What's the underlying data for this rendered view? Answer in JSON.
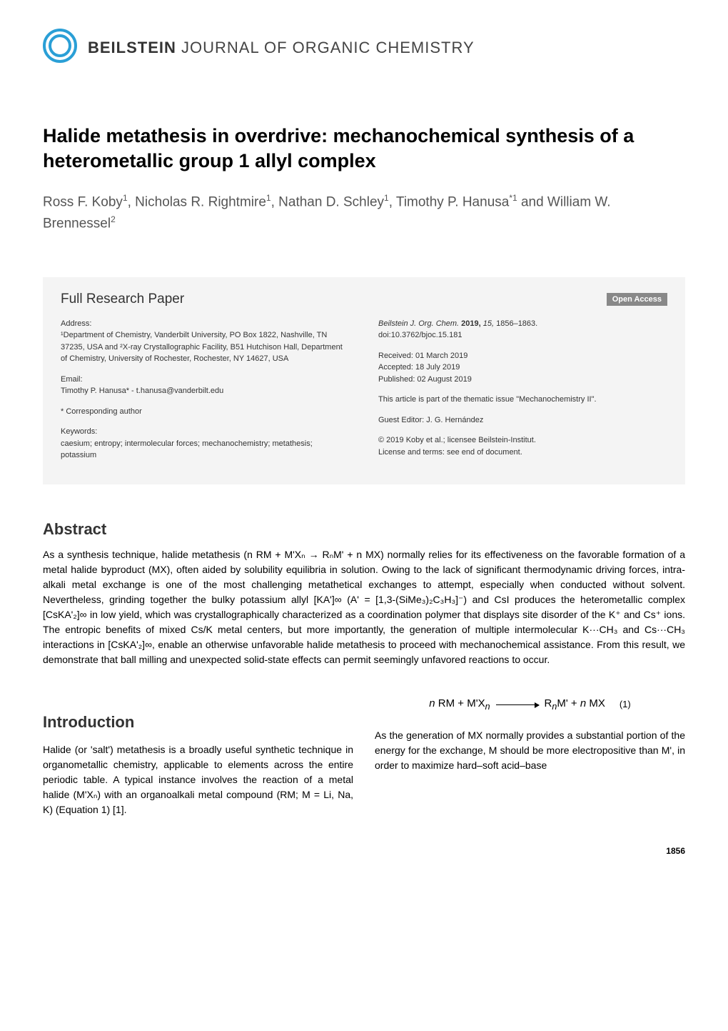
{
  "journal": {
    "name_bold": "BEILSTEIN",
    "name_rest": " JOURNAL OF ORGANIC CHEMISTRY",
    "logo_color": "#2a9fd6"
  },
  "article": {
    "title": "Halide metathesis in overdrive: mechanochemical synthesis of a heterometallic group 1 allyl complex",
    "authors_html": "Ross F. Koby<sup>1</sup>, Nicholas R. Rightmire<sup>1</sup>, Nathan D. Schley<sup>1</sup>, Timothy P. Hanusa<sup>*1</sup> and William W. Brennessel<sup>2</sup>"
  },
  "infobox": {
    "paper_type": "Full Research Paper",
    "open_access": "Open Access",
    "left": {
      "address_label": "Address:",
      "address": "¹Department of Chemistry, Vanderbilt University, PO Box 1822, Nashville, TN 37235, USA and ²X-ray Crystallographic Facility, B51 Hutchison Hall, Department of Chemistry, University of Rochester, Rochester, NY 14627, USA",
      "email_label": "Email:",
      "email": "Timothy P. Hanusa* - t.hanusa@vanderbilt.edu",
      "corresponding": "* Corresponding author",
      "keywords_label": "Keywords:",
      "keywords": "caesium; entropy; intermolecular forces; mechanochemistry; metathesis; potassium"
    },
    "right": {
      "citation_italic": "Beilstein J. Org. Chem.",
      "citation_rest": " 2019, 15, 1856–1863.",
      "doi": "doi:10.3762/bjoc.15.181",
      "received": "Received: 01 March 2019",
      "accepted": "Accepted: 18 July 2019",
      "published": "Published: 02 August 2019",
      "thematic": "This article is part of the thematic issue \"Mechanochemistry II\".",
      "editor": "Guest Editor: J. G. Hernández",
      "copyright": "© 2019 Koby et al.; licensee Beilstein-Institut.",
      "license": "License and terms: see end of document."
    }
  },
  "abstract": {
    "heading": "Abstract",
    "text": "As a synthesis technique, halide metathesis (n RM + M'Xₙ → RₙM' + n MX) normally relies for its effectiveness on the favorable formation of a metal halide byproduct (MX), often aided by solubility equilibria in solution. Owing to the lack of significant thermodynamic driving forces, intra-alkali metal exchange is one of the most challenging metathetical exchanges to attempt, especially when conducted without solvent. Nevertheless, grinding together the bulky potassium allyl [KA']∞ (A' = [1,3-(SiMe₃)₂C₃H₃]⁻) and CsI produces the heterometallic complex [CsKA'₂]∞ in low yield, which was crystallographically characterized as a coordination polymer that displays site disorder of the K⁺ and Cs⁺ ions. The entropic benefits of mixed Cs/K metal centers, but more importantly, the generation of multiple intermolecular K···CH₃ and Cs···CH₃ interactions in [CsKA'₂]∞, enable an otherwise unfavorable halide metathesis to proceed with mechanochemical assistance. From this result, we demonstrate that ball milling and unexpected solid-state effects can permit seemingly unfavored reactions to occur."
  },
  "introduction": {
    "heading": "Introduction",
    "left_text": "Halide (or 'salt') metathesis is a broadly useful synthetic technique in organometallic chemistry, applicable to elements across the entire periodic table. A typical instance involves the reaction of a metal halide (M'Xₙ) with an organoalkali metal compound (RM; M = Li, Na, K) (Equation 1) [1].",
    "equation_left": "n RM + M'Xₙ",
    "equation_right": "RₙM' + n MX",
    "equation_number": "(1)",
    "right_text": "As the generation of MX normally provides a substantial portion of the energy for the exchange, M should be more electropositive than M', in order to maximize hard–soft acid–base"
  },
  "page_number": "1856",
  "colors": {
    "background": "#ffffff",
    "text": "#000000",
    "infobox_bg": "#f4f4f4",
    "open_access_bg": "#888888",
    "logo": "#2a9fd6"
  }
}
